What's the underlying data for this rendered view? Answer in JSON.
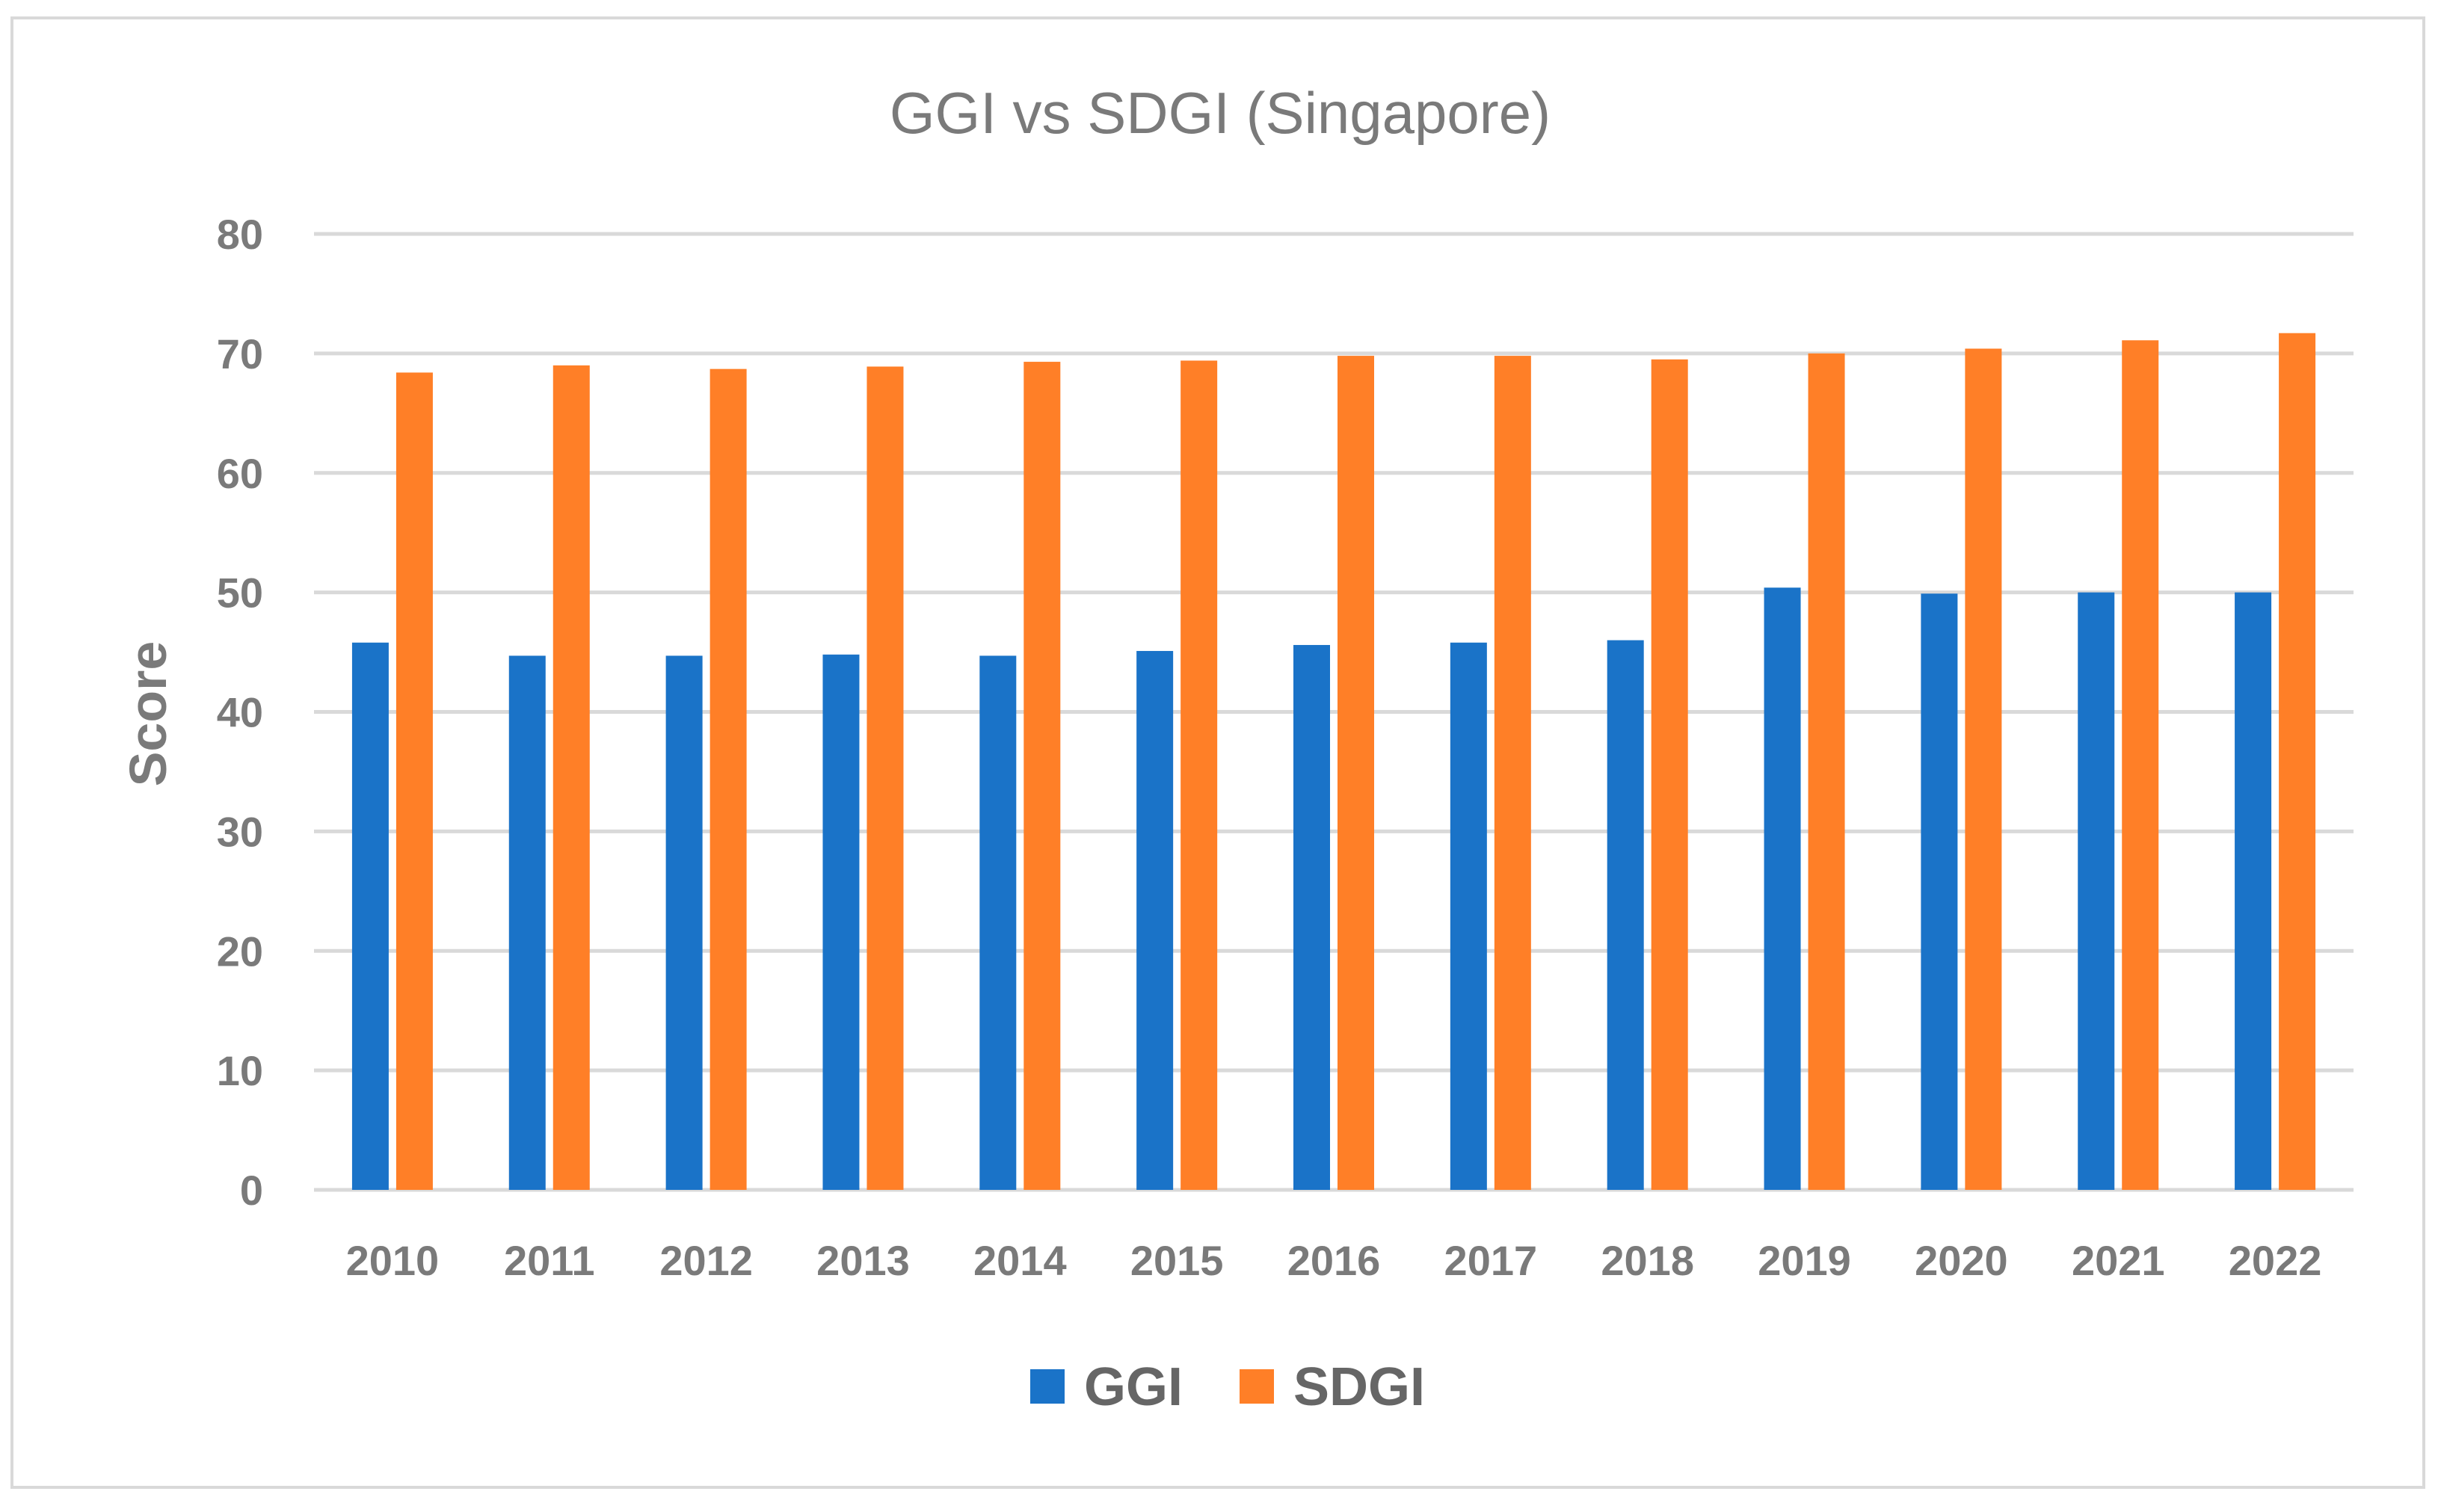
{
  "chart_data": {
    "type": "bar",
    "title": "GGI vs SDGI (Singapore)",
    "xlabel": "",
    "ylabel": "Score",
    "ylim": [
      0,
      80
    ],
    "yticks": [
      0,
      10,
      20,
      30,
      40,
      50,
      60,
      70,
      80
    ],
    "grid": true,
    "legend_position": "bottom",
    "categories": [
      "2010",
      "2011",
      "2012",
      "2013",
      "2014",
      "2015",
      "2016",
      "2017",
      "2018",
      "2019",
      "2020",
      "2021",
      "2022"
    ],
    "series": [
      {
        "name": "GGI",
        "color": "#1a73c8",
        "values": [
          45.8,
          44.7,
          44.7,
          44.8,
          44.7,
          45.1,
          45.6,
          45.8,
          46.0,
          50.4,
          49.9,
          50.0,
          50.0
        ]
      },
      {
        "name": "SDGI",
        "color": "#ff7f27",
        "values": [
          68.4,
          69.0,
          68.7,
          68.9,
          69.3,
          69.4,
          69.8,
          69.8,
          69.5,
          70.0,
          70.4,
          71.1,
          71.7
        ]
      }
    ],
    "colors": {
      "grid": "#d9d9d9",
      "text": "#7a7a7a"
    }
  }
}
